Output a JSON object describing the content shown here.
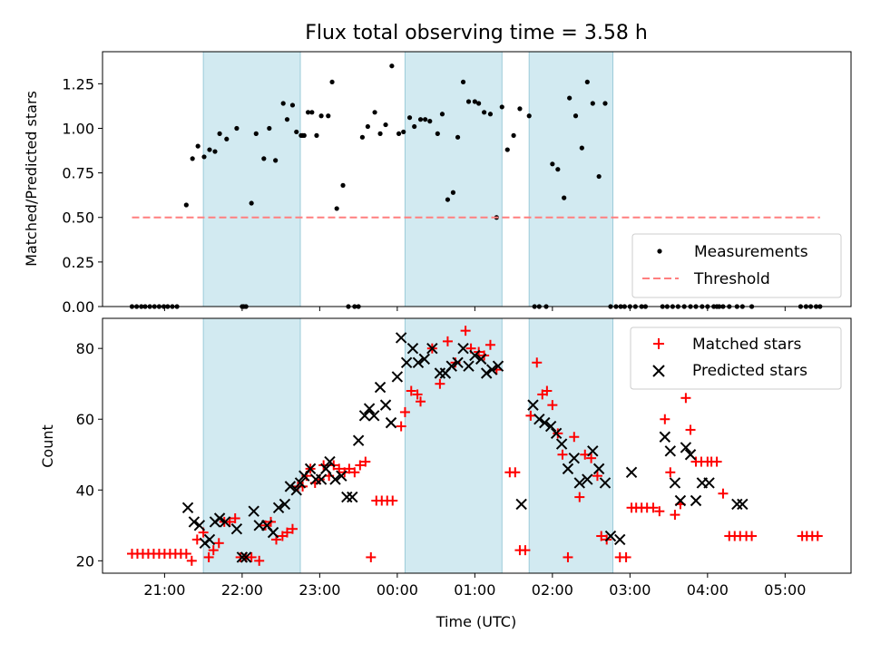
{
  "chart_data": [
    {
      "type": "scatter",
      "title": "Flux total observing time = 3.58 h",
      "ylabel": "Matched/Predicted stars",
      "xlabel": "",
      "xlim": [
        -3.8,
        5.85
      ],
      "ylim": [
        0,
        1.43
      ],
      "yticks": [
        0.0,
        0.25,
        0.5,
        0.75,
        1.0,
        1.25
      ],
      "ytick_labels": [
        "0.00",
        "0.25",
        "0.50",
        "0.75",
        "1.00",
        "1.25"
      ],
      "shaded_intervals": [
        [
          -2.5,
          -1.25
        ],
        [
          0.1,
          1.35
        ],
        [
          1.7,
          2.78
        ]
      ],
      "legend_position": "bottom-right",
      "series": [
        {
          "name": "Measurements",
          "marker": "dot",
          "color": "#000000",
          "x": [
            -3.42,
            -3.36,
            -3.3,
            -3.25,
            -3.19,
            -3.13,
            -3.07,
            -3.01,
            -2.96,
            -2.9,
            -2.84,
            -2.72,
            -2.64,
            -2.57,
            -2.49,
            -2.42,
            -2.35,
            -2.29,
            -2.2,
            -2.07,
            -2.0,
            -1.98,
            -1.95,
            -1.88,
            -1.82,
            -1.72,
            -1.65,
            -1.57,
            -1.47,
            -1.42,
            -1.35,
            -1.3,
            -1.24,
            -1.22,
            -1.2,
            -1.15,
            -1.1,
            -1.04,
            -0.98,
            -0.89,
            -0.84,
            -0.78,
            -0.7,
            -0.63,
            -0.55,
            -0.5,
            -0.45,
            -0.38,
            -0.29,
            -0.22,
            -0.15,
            -0.07,
            0.02,
            0.08,
            0.16,
            0.22,
            0.3,
            0.36,
            0.42,
            0.52,
            0.58,
            0.65,
            0.72,
            0.78,
            0.85,
            0.92,
            1.0,
            1.05,
            1.12,
            1.2,
            1.28,
            1.35,
            1.42,
            1.5,
            1.58,
            1.7,
            1.77,
            1.83,
            1.92,
            2.0,
            2.07,
            2.15,
            2.22,
            2.3,
            2.38,
            2.45,
            2.52,
            2.6,
            2.68,
            2.75,
            2.82,
            2.88,
            2.93,
            3.0,
            3.07,
            3.15,
            3.2,
            3.42,
            3.48,
            3.55,
            3.62,
            3.7,
            3.78,
            3.85,
            3.93,
            4.0,
            4.08,
            4.12,
            4.15,
            4.2,
            4.28,
            4.38,
            4.45,
            4.57,
            5.2,
            5.27,
            5.33,
            5.4,
            5.45
          ],
          "y": [
            0.0,
            0.0,
            0.0,
            0.0,
            0.0,
            0.0,
            0.0,
            0.0,
            0.0,
            0.0,
            0.0,
            0.57,
            0.83,
            0.9,
            0.84,
            0.88,
            0.87,
            0.97,
            0.94,
            1.0,
            0.0,
            0.0,
            0.0,
            0.58,
            0.97,
            0.83,
            1.0,
            0.82,
            1.14,
            1.05,
            1.13,
            0.98,
            0.96,
            0.96,
            0.96,
            1.09,
            1.09,
            0.96,
            1.07,
            1.07,
            1.26,
            0.55,
            0.68,
            0.0,
            0.0,
            0.0,
            0.95,
            1.01,
            1.09,
            0.97,
            1.02,
            1.35,
            0.97,
            0.98,
            1.06,
            1.01,
            1.05,
            1.05,
            1.04,
            0.97,
            1.08,
            0.6,
            0.64,
            0.95,
            1.26,
            1.15,
            1.15,
            1.14,
            1.09,
            1.08,
            0.5,
            1.12,
            0.88,
            0.96,
            1.11,
            1.07,
            0.0,
            0.0,
            0.0,
            0.8,
            0.77,
            0.61,
            1.17,
            1.07,
            0.89,
            1.26,
            1.14,
            0.73,
            1.14,
            0.0,
            0.0,
            0.0,
            0.0,
            0.0,
            0.0,
            0.0,
            0.0,
            0.0,
            0.0,
            0.0,
            0.0,
            0.0,
            0.0,
            0.0,
            0.0,
            0.0,
            0.0,
            0.0,
            0.0,
            0.0,
            0.0,
            0.0,
            0.0,
            0.0,
            0.0,
            0.0,
            0.0,
            0.0,
            0.0
          ]
        },
        {
          "name": "Threshold",
          "line_style": "dashed",
          "color": "#ff7f7f",
          "x": [
            -3.42,
            5.45
          ],
          "y": [
            0.5,
            0.5
          ]
        }
      ]
    },
    {
      "type": "scatter",
      "title": "",
      "ylabel": "Count",
      "xlabel": "Time (UTC)",
      "xlim": [
        -3.8,
        5.85
      ],
      "ylim": [
        16.5,
        88.5
      ],
      "yticks": [
        20,
        40,
        60,
        80
      ],
      "ytick_labels": [
        "20",
        "40",
        "60",
        "80"
      ],
      "xticks": [
        -3,
        -2,
        -1,
        0,
        1,
        2,
        3,
        4,
        5
      ],
      "xtick_labels": [
        "21:00",
        "22:00",
        "23:00",
        "00:00",
        "01:00",
        "02:00",
        "03:00",
        "04:00",
        "05:00"
      ],
      "shaded_intervals": [
        [
          -2.5,
          -1.25
        ],
        [
          0.1,
          1.35
        ],
        [
          1.7,
          2.78
        ]
      ],
      "legend_position": "top-right",
      "series": [
        {
          "name": "Matched stars",
          "marker": "plus",
          "color": "#ff0000",
          "x": [
            -3.42,
            -3.35,
            -3.28,
            -3.21,
            -3.14,
            -3.07,
            -3.0,
            -2.93,
            -2.86,
            -2.79,
            -2.72,
            -2.65,
            -2.58,
            -2.5,
            -2.43,
            -2.37,
            -2.3,
            -2.23,
            -2.16,
            -2.09,
            -2.02,
            -1.95,
            -1.88,
            -1.78,
            -1.7,
            -1.63,
            -1.56,
            -1.48,
            -1.42,
            -1.35,
            -1.28,
            -1.22,
            -1.17,
            -1.12,
            -1.06,
            -1.0,
            -0.95,
            -0.88,
            -0.82,
            -0.75,
            -0.68,
            -0.62,
            -0.55,
            -0.48,
            -0.41,
            -0.34,
            -0.27,
            -0.2,
            -0.13,
            -0.06,
            0.05,
            0.1,
            0.18,
            0.26,
            0.3,
            0.45,
            0.55,
            0.65,
            0.75,
            0.88,
            0.95,
            1.05,
            1.12,
            1.2,
            1.28,
            1.45,
            1.52,
            1.58,
            1.65,
            1.72,
            1.8,
            1.87,
            1.93,
            2.0,
            2.07,
            2.13,
            2.2,
            2.28,
            2.35,
            2.42,
            2.5,
            2.58,
            2.63,
            2.7,
            2.87,
            2.95,
            3.02,
            3.08,
            3.15,
            3.22,
            3.3,
            3.38,
            3.45,
            3.52,
            3.58,
            3.65,
            3.72,
            3.78,
            3.85,
            3.92,
            4.0,
            4.05,
            4.12,
            4.2,
            4.28,
            4.35,
            4.42,
            4.5,
            4.57,
            5.22,
            5.28,
            5.35,
            5.42
          ],
          "y": [
            22,
            22,
            22,
            22,
            22,
            22,
            22,
            22,
            22,
            22,
            22,
            20,
            26,
            28,
            21,
            23,
            25,
            31,
            31,
            32,
            21,
            21,
            21,
            20,
            30,
            31,
            26,
            27,
            28,
            29,
            41,
            41,
            44,
            46,
            42,
            43,
            47,
            44,
            47,
            46,
            45,
            46,
            45,
            47,
            48,
            21,
            37,
            37,
            37,
            37,
            58,
            62,
            68,
            67,
            65,
            80,
            70,
            82,
            76,
            85,
            80,
            79,
            78,
            81,
            74,
            45,
            45,
            23,
            23,
            61,
            76,
            67,
            68,
            64,
            56,
            50,
            21,
            55,
            38,
            50,
            49,
            44,
            27,
            26,
            21,
            21,
            35,
            35,
            35,
            35,
            35,
            34,
            60,
            45,
            33,
            36,
            66,
            57,
            48,
            48,
            48,
            48,
            48,
            39,
            27,
            27,
            27,
            27,
            27,
            27,
            27,
            27,
            27
          ],
          "xlabels_note": ""
        },
        {
          "name": "Predicted stars",
          "marker": "x",
          "color": "#000000",
          "x": [
            -2.7,
            -2.62,
            -2.55,
            -2.48,
            -2.42,
            -2.35,
            -2.29,
            -2.22,
            -2.0,
            -2.07,
            -1.95,
            -1.85,
            -1.78,
            -1.68,
            -1.6,
            -1.53,
            -1.45,
            -1.38,
            -1.3,
            -1.25,
            -1.2,
            -1.12,
            -1.05,
            -0.98,
            -0.92,
            -0.87,
            -0.8,
            -0.72,
            -0.65,
            -0.58,
            -0.5,
            -0.42,
            -0.36,
            -0.3,
            -0.22,
            -0.15,
            -0.08,
            0.0,
            0.05,
            0.12,
            0.2,
            0.27,
            0.35,
            0.45,
            0.55,
            0.62,
            0.7,
            0.78,
            0.85,
            0.92,
            1.0,
            1.08,
            1.15,
            1.22,
            1.3,
            1.6,
            1.75,
            1.83,
            1.9,
            1.98,
            2.05,
            2.12,
            2.2,
            2.28,
            2.35,
            2.45,
            2.52,
            2.6,
            2.68,
            2.75,
            2.87,
            3.02,
            3.45,
            3.52,
            3.58,
            3.65,
            3.72,
            3.78,
            3.85,
            3.93,
            4.02,
            4.38,
            4.45
          ],
          "y": [
            35,
            31,
            30,
            25,
            26,
            31,
            32,
            31,
            21,
            29,
            21,
            34,
            30,
            30,
            28,
            35,
            36,
            41,
            40,
            42,
            44,
            46,
            43,
            43,
            46,
            48,
            43,
            44,
            38,
            38,
            54,
            61,
            63,
            61,
            69,
            64,
            59,
            72,
            83,
            76,
            80,
            76,
            77,
            80,
            73,
            73,
            75,
            76,
            80,
            75,
            78,
            77,
            73,
            74,
            75,
            36,
            64,
            60,
            59,
            58,
            56,
            53,
            46,
            49,
            42,
            43,
            51,
            46,
            42,
            27,
            26,
            45,
            55,
            51,
            42,
            37,
            52,
            50,
            37,
            42,
            42,
            36,
            36
          ]
        }
      ]
    }
  ]
}
